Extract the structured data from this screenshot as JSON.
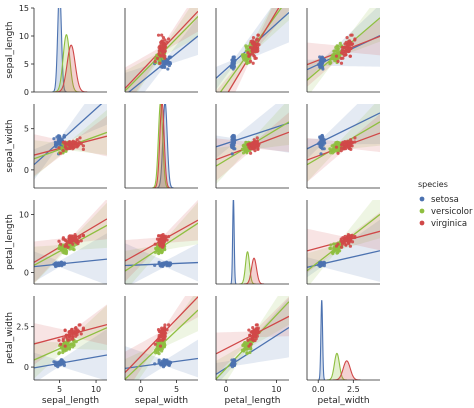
{
  "chart_data": {
    "type": "scatter",
    "kind": "pairplot",
    "variables": [
      "sepal_length",
      "sepal_width",
      "petal_length",
      "petal_width"
    ],
    "axis_ranges": {
      "sepal_length": [
        1.5,
        11.5
      ],
      "sepal_width": [
        -2.2,
        8.0
      ],
      "petal_length": [
        -2.0,
        12.5
      ],
      "petal_width": [
        -0.8,
        4.4
      ]
    },
    "ticks": {
      "sepal_length": [
        5,
        10
      ],
      "sepal_width": [
        0,
        5
      ],
      "petal_length": [
        0,
        10
      ],
      "petal_width": [
        0.0,
        2.5
      ]
    },
    "row0_ylim": [
      0,
      15
    ],
    "row0_ticks": [
      0,
      5,
      10,
      15
    ],
    "diag_ymax": {
      "sepal_length": 1.3,
      "sepal_width": 1.3,
      "petal_length": 2.6,
      "petal_width": 7.0
    },
    "legend": {
      "title": "species",
      "position": "right"
    },
    "colors": {
      "setosa": "#4c72b0",
      "versicolor": "#8fbf40",
      "virginica": "#d04848"
    },
    "species": [
      {
        "name": "setosa",
        "mean": {
          "sepal_length": 5.0,
          "sepal_width": 3.4,
          "petal_length": 1.46,
          "petal_width": 0.25
        },
        "sd": {
          "sepal_length": 0.35,
          "sepal_width": 0.38,
          "petal_length": 0.17,
          "petal_width": 0.1
        },
        "kde_sd": {
          "sepal_length": 0.25,
          "sepal_width": 0.3,
          "petal_length": 0.15,
          "petal_width": 0.06
        }
      },
      {
        "name": "versicolor",
        "mean": {
          "sepal_length": 5.94,
          "sepal_width": 2.77,
          "petal_length": 4.26,
          "petal_width": 1.33
        },
        "sd": {
          "sepal_length": 0.52,
          "sepal_width": 0.31,
          "petal_length": 0.47,
          "petal_width": 0.2
        },
        "kde_sd": {
          "sepal_length": 0.45,
          "sepal_width": 0.3,
          "petal_length": 0.4,
          "petal_width": 0.18
        }
      },
      {
        "name": "virginica",
        "mean": {
          "sepal_length": 6.59,
          "sepal_width": 2.97,
          "petal_length": 5.55,
          "petal_width": 2.03
        },
        "sd": {
          "sepal_length": 0.64,
          "sepal_width": 0.32,
          "petal_length": 0.55,
          "petal_width": 0.27
        },
        "kde_sd": {
          "sepal_length": 0.55,
          "sepal_width": 0.3,
          "petal_length": 0.5,
          "petal_width": 0.25
        }
      }
    ],
    "regression": [
      {
        "species": "setosa",
        "x": "sepal_width",
        "y": "sepal_length",
        "slope": 0.69,
        "intercept": 2.64
      },
      {
        "species": "setosa",
        "x": "petal_length",
        "y": "sepal_length",
        "slope": 0.54,
        "intercept": 4.21
      },
      {
        "species": "setosa",
        "x": "petal_width",
        "y": "sepal_length",
        "slope": 0.78,
        "intercept": 4.78
      },
      {
        "species": "setosa",
        "x": "sepal_length",
        "y": "sepal_width",
        "slope": 0.8,
        "intercept": -0.57
      },
      {
        "species": "setosa",
        "x": "petal_length",
        "y": "sepal_width",
        "slope": 0.2,
        "intercept": 3.2
      },
      {
        "species": "setosa",
        "x": "petal_width",
        "y": "sepal_width",
        "slope": 0.84,
        "intercept": 3.22
      },
      {
        "species": "setosa",
        "x": "sepal_length",
        "y": "petal_length",
        "slope": 0.13,
        "intercept": 0.8
      },
      {
        "species": "setosa",
        "x": "sepal_width",
        "y": "petal_length",
        "slope": 0.05,
        "intercept": 1.3
      },
      {
        "species": "setosa",
        "x": "petal_width",
        "y": "petal_length",
        "slope": 0.55,
        "intercept": 1.32
      },
      {
        "species": "setosa",
        "x": "sepal_length",
        "y": "petal_width",
        "slope": 0.08,
        "intercept": -0.17
      },
      {
        "species": "setosa",
        "x": "sepal_width",
        "y": "petal_width",
        "slope": 0.06,
        "intercept": 0.05
      },
      {
        "species": "setosa",
        "x": "petal_length",
        "y": "petal_width",
        "slope": 0.2,
        "intercept": -0.05
      },
      {
        "species": "versicolor",
        "x": "sepal_width",
        "y": "sepal_length",
        "slope": 0.87,
        "intercept": 3.54
      },
      {
        "species": "versicolor",
        "x": "petal_length",
        "y": "sepal_length",
        "slope": 0.83,
        "intercept": 2.41
      },
      {
        "species": "versicolor",
        "x": "petal_width",
        "y": "sepal_length",
        "slope": 1.43,
        "intercept": 4.04
      },
      {
        "species": "versicolor",
        "x": "sepal_length",
        "y": "sepal_width",
        "slope": 0.32,
        "intercept": 0.87
      },
      {
        "species": "versicolor",
        "x": "petal_length",
        "y": "sepal_width",
        "slope": 0.37,
        "intercept": 1.2
      },
      {
        "species": "versicolor",
        "x": "petal_width",
        "y": "sepal_width",
        "slope": 1.0,
        "intercept": 1.43
      },
      {
        "species": "versicolor",
        "x": "sepal_length",
        "y": "petal_length",
        "slope": 0.69,
        "intercept": 0.19
      },
      {
        "species": "versicolor",
        "x": "sepal_width",
        "y": "petal_length",
        "slope": 0.81,
        "intercept": 2.02
      },
      {
        "species": "versicolor",
        "x": "petal_width",
        "y": "petal_length",
        "slope": 1.87,
        "intercept": 1.78
      },
      {
        "species": "versicolor",
        "x": "sepal_length",
        "y": "petal_width",
        "slope": 0.2,
        "intercept": 0.14
      },
      {
        "species": "versicolor",
        "x": "sepal_width",
        "y": "petal_width",
        "slope": 0.42,
        "intercept": 0.17
      },
      {
        "species": "versicolor",
        "x": "petal_length",
        "y": "petal_width",
        "slope": 0.33,
        "intercept": -0.08
      },
      {
        "species": "virginica",
        "x": "sepal_width",
        "y": "sepal_length",
        "slope": 0.9,
        "intercept": 3.91
      },
      {
        "species": "virginica",
        "x": "petal_length",
        "y": "sepal_length",
        "slope": 1.0,
        "intercept": 1.06
      },
      {
        "species": "virginica",
        "x": "petal_width",
        "y": "sepal_length",
        "slope": 0.65,
        "intercept": 5.27
      },
      {
        "species": "virginica",
        "x": "sepal_length",
        "y": "sepal_width",
        "slope": 0.23,
        "intercept": 1.45
      },
      {
        "species": "virginica",
        "x": "petal_length",
        "y": "sepal_width",
        "slope": 0.23,
        "intercept": 1.7
      },
      {
        "species": "virginica",
        "x": "petal_width",
        "y": "sepal_width",
        "slope": 0.63,
        "intercept": 1.7
      },
      {
        "species": "virginica",
        "x": "sepal_length",
        "y": "petal_length",
        "slope": 0.75,
        "intercept": 0.61
      },
      {
        "species": "virginica",
        "x": "sepal_width",
        "y": "petal_length",
        "slope": 0.69,
        "intercept": 3.5
      },
      {
        "species": "virginica",
        "x": "petal_width",
        "y": "petal_length",
        "slope": 0.65,
        "intercept": 4.24
      },
      {
        "species": "virginica",
        "x": "sepal_length",
        "y": "petal_width",
        "slope": 0.12,
        "intercept": 1.25
      },
      {
        "species": "virginica",
        "x": "sepal_width",
        "y": "petal_width",
        "slope": 0.46,
        "intercept": 0.67
      },
      {
        "species": "virginica",
        "x": "petal_length",
        "y": "petal_width",
        "slope": 0.16,
        "intercept": 1.14
      }
    ]
  }
}
